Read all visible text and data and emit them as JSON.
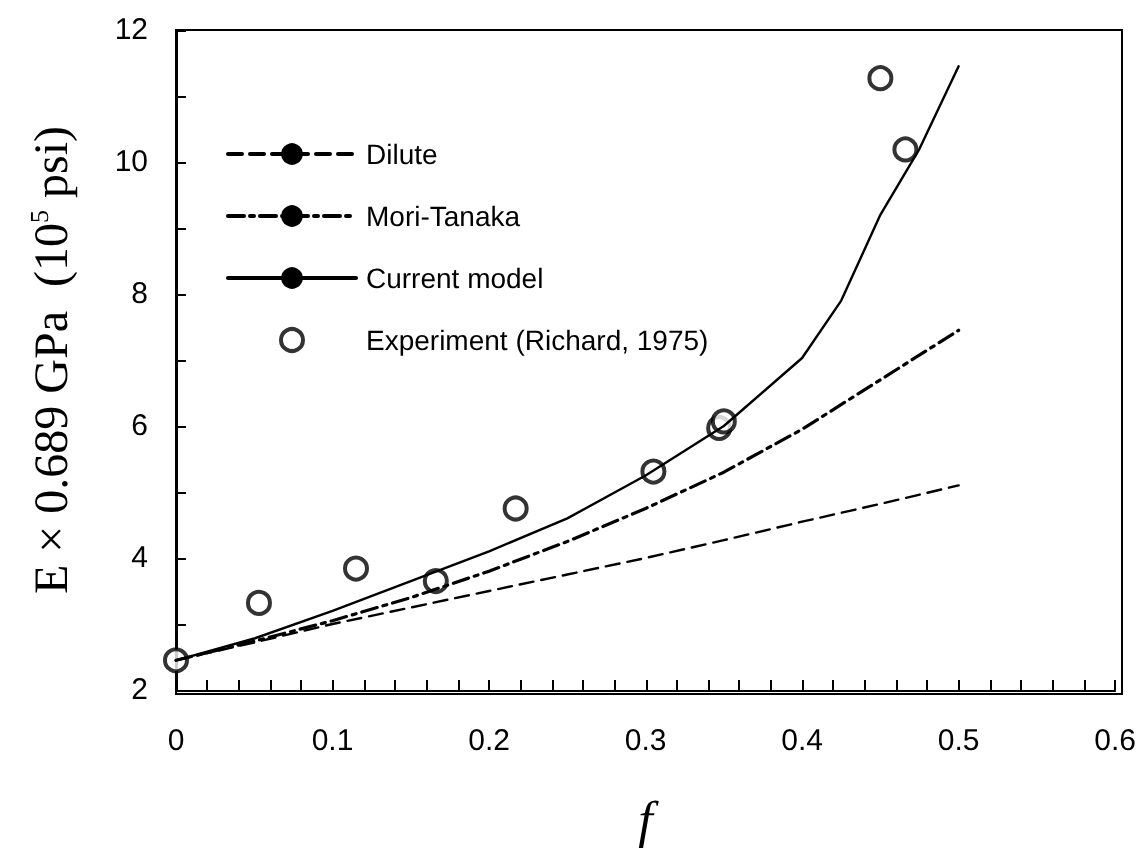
{
  "chart_data": {
    "type": "line",
    "xlabel": "f",
    "ylabel": "E × 0.689 GPa  (10$^{5}$ psi)",
    "xlim": [
      0,
      0.6
    ],
    "xticks": [
      0,
      0.1,
      0.2,
      0.3,
      0.4,
      0.5,
      0.6
    ],
    "ylim": [
      2,
      12
    ],
    "yticks": [
      2,
      4,
      6,
      8,
      10,
      12
    ],
    "grid": false,
    "legend": "top left",
    "series": [
      {
        "name": "Dilute",
        "color": "#000000",
        "line_style": "dashed",
        "marker": "none",
        "x": [
          0,
          0.05,
          0.1,
          0.15,
          0.2,
          0.25,
          0.3,
          0.35,
          0.4,
          0.45,
          0.5
        ],
        "values": [
          2.45,
          2.72,
          3.0,
          3.25,
          3.5,
          3.75,
          4.0,
          4.27,
          4.55,
          4.82,
          5.1
        ]
      },
      {
        "name": "Mori-Tanaka",
        "color": "#000000",
        "line_style": "dashdot",
        "marker": "none",
        "x": [
          0,
          0.05,
          0.1,
          0.15,
          0.2,
          0.25,
          0.3,
          0.35,
          0.4,
          0.45,
          0.5
        ],
        "values": [
          2.45,
          2.74,
          3.05,
          3.4,
          3.8,
          4.25,
          4.75,
          5.3,
          5.95,
          6.7,
          7.45
        ]
      },
      {
        "name": "Current model",
        "color": "#000000",
        "line_style": "solid",
        "marker": "none",
        "x": [
          0,
          0.05,
          0.1,
          0.15,
          0.2,
          0.25,
          0.3,
          0.35,
          0.4,
          0.425,
          0.45,
          0.475,
          0.5
        ],
        "values": [
          2.45,
          2.78,
          3.2,
          3.65,
          4.1,
          4.6,
          5.25,
          6.0,
          7.03,
          7.9,
          9.2,
          10.2,
          11.45
        ]
      },
      {
        "name": "Experiment (Richard, 1975)",
        "type": "scatter",
        "color": "#000000",
        "marker": "circle",
        "x": [
          0,
          0.053,
          0.115,
          0.166,
          0.217,
          0.305,
          0.347,
          0.35,
          0.45,
          0.466
        ],
        "values": [
          2.45,
          3.32,
          3.84,
          3.65,
          4.75,
          5.31,
          5.97,
          6.07,
          11.27,
          10.19
        ]
      }
    ]
  }
}
